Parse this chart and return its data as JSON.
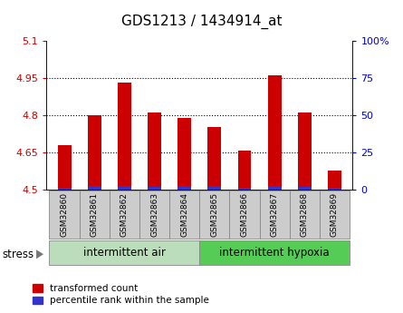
{
  "title": "GDS1213 / 1434914_at",
  "categories": [
    "GSM32860",
    "GSM32861",
    "GSM32862",
    "GSM32863",
    "GSM32864",
    "GSM32865",
    "GSM32866",
    "GSM32867",
    "GSM32868",
    "GSM32869"
  ],
  "red_values": [
    4.68,
    4.8,
    4.93,
    4.81,
    4.79,
    4.75,
    4.655,
    4.96,
    4.81,
    4.575
  ],
  "blue_heights": [
    0.008,
    0.012,
    0.012,
    0.01,
    0.012,
    0.012,
    0.008,
    0.012,
    0.01,
    0.008
  ],
  "ymin": 4.5,
  "ymax": 5.1,
  "yticks": [
    4.5,
    4.65,
    4.8,
    4.95,
    5.1
  ],
  "ytick_labels": [
    "4.5",
    "4.65",
    "4.8",
    "4.95",
    "5.1"
  ],
  "y2ticks": [
    0,
    25,
    50,
    75,
    100
  ],
  "y2tick_labels": [
    "0",
    "25",
    "50",
    "75",
    "100%"
  ],
  "group1_label": "intermittent air",
  "group2_label": "intermittent hypoxia",
  "bar_width": 0.45,
  "red_color": "#cc0000",
  "blue_color": "#3333cc",
  "group1_bg": "#bbddbb",
  "group2_bg": "#55cc55",
  "sample_box_bg": "#cccccc",
  "stress_label": "stress",
  "legend1": "transformed count",
  "legend2": "percentile rank within the sample",
  "title_fontsize": 11,
  "tick_fontsize": 8,
  "label_fontsize": 8.5,
  "cat_fontsize": 6.5
}
